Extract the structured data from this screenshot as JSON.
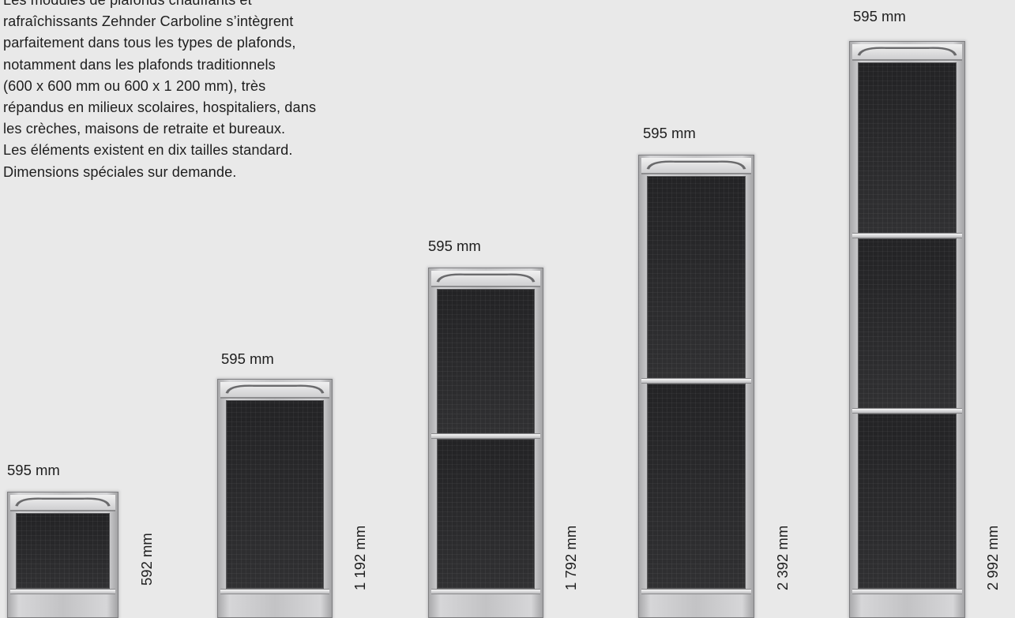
{
  "intro_lines": [
    "Les modules de plafonds chauffants et",
    "rafraîchissants Zehnder Carboline s’intègrent",
    "parfaitement dans tous les types de plafonds,",
    "notamment dans les plafonds traditionnels",
    "(600 x 600 mm ou 600 x 1 200 mm), très",
    "répandus en milieux scolaires, hospitaliers, dans",
    "les crèches, maisons de retraite et bureaux.",
    "Les éléments existent en dix tailles standard.",
    "Dimensions spéciales sur demande."
  ],
  "modules": [
    {
      "width_label": "595 mm",
      "height_label": "592 mm",
      "panels": 1
    },
    {
      "width_label": "595 mm",
      "height_label": "1 192 mm",
      "panels": 1
    },
    {
      "width_label": "595 mm",
      "height_label": "1 792 mm",
      "panels": 2
    },
    {
      "width_label": "595 mm",
      "height_label": "2 392 mm",
      "panels": 2
    },
    {
      "width_label": "595 mm",
      "height_label": "2 992 mm",
      "panels": 3
    }
  ]
}
